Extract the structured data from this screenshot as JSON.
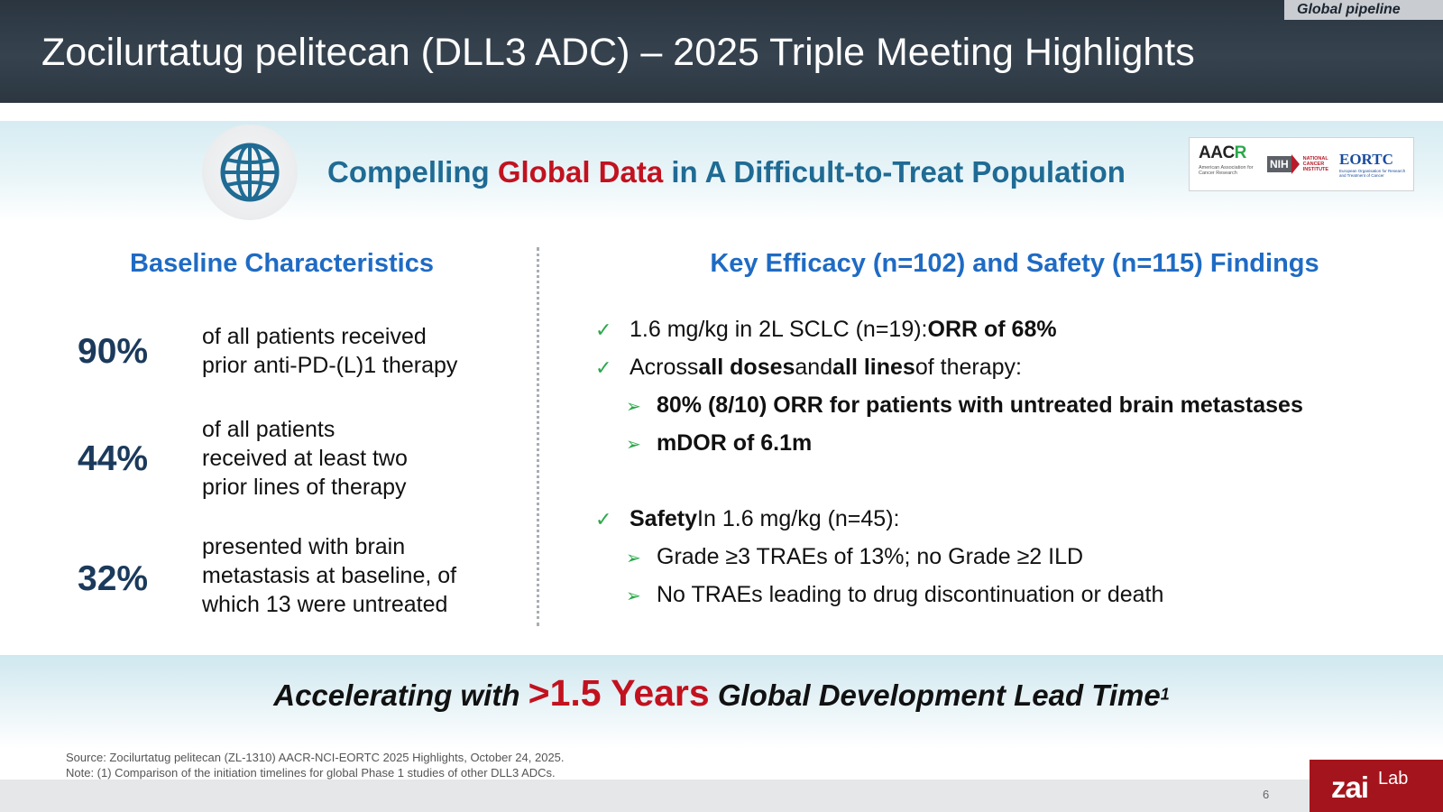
{
  "header": {
    "tag": "Global pipeline",
    "title": "Zocilurtatug pelitecan (DLL3 ADC) – 2025 Triple Meeting Highlights"
  },
  "subtitle": {
    "part1": "Compelling ",
    "highlight": "Global Data",
    "part2": " in A Difficult-to-Treat Population",
    "icon": "globe-icon"
  },
  "logos": {
    "aacr": {
      "word_a": "AAC",
      "word_r": "R",
      "sub": "American Association for Cancer Research"
    },
    "nih": {
      "box": "NIH",
      "text": "NATIONAL CANCER INSTITUTE"
    },
    "eortc": {
      "word": "EORTC",
      "sub": "European Organisation for Research and Treatment of Cancer"
    }
  },
  "left": {
    "heading": "Baseline Characteristics",
    "stats": [
      {
        "value": "90%",
        "lines": [
          "of all patients received",
          "prior anti-PD-(L)1 therapy"
        ]
      },
      {
        "value": "44%",
        "lines": [
          "of all patients",
          "received at least two",
          "prior lines of therapy"
        ]
      },
      {
        "value": "32%",
        "lines": [
          "presented with brain",
          "metastasis at baseline, of",
          "which 13 were untreated"
        ]
      }
    ]
  },
  "right": {
    "heading": "Key Efficacy (n=102) and Safety (n=115) Findings",
    "b1_text": "1.6 mg/kg in 2L SCLC (n=19): ",
    "b1_bold": "ORR of 68%",
    "b2_t1": "Across ",
    "b2_b1": "all doses",
    "b2_t2": " and ",
    "b2_b2": "all lines",
    "b2_t3": " of therapy:",
    "s1": "80% (8/10) ORR for patients with untreated brain metastases",
    "s2": "mDOR of 6.1m",
    "b3_bold": "Safety",
    "b3_text": " In 1.6 mg/kg (n=45):",
    "s3": "Grade ≥3 TRAEs of 13%; no Grade ≥2 ILD",
    "s4": "No TRAEs leading to drug discontinuation or death",
    "check_glyph": "✓",
    "arrow_glyph": "➢"
  },
  "tagline": {
    "part1": "Accelerating with ",
    "highlight": ">1.5 Years",
    "part2": " Global Development Lead Time",
    "sup": "1"
  },
  "source": {
    "line1": "Source: Zocilurtatug pelitecan (ZL-1310) AACR-NCI-EORTC 2025 Highlights, October 24, 2025.",
    "line2": "Note: (1) Comparison of the initiation timelines for global Phase 1 studies of other DLL3 ADCs."
  },
  "footer": {
    "page": "6",
    "logo_zai": "zai",
    "logo_lab": "Lab"
  },
  "colors": {
    "accent_blue": "#1f6bc4",
    "highlight_red": "#c2121f",
    "check_green": "#2aa84a",
    "header_bg": "#2a3540",
    "brand_red": "#a4141c"
  }
}
